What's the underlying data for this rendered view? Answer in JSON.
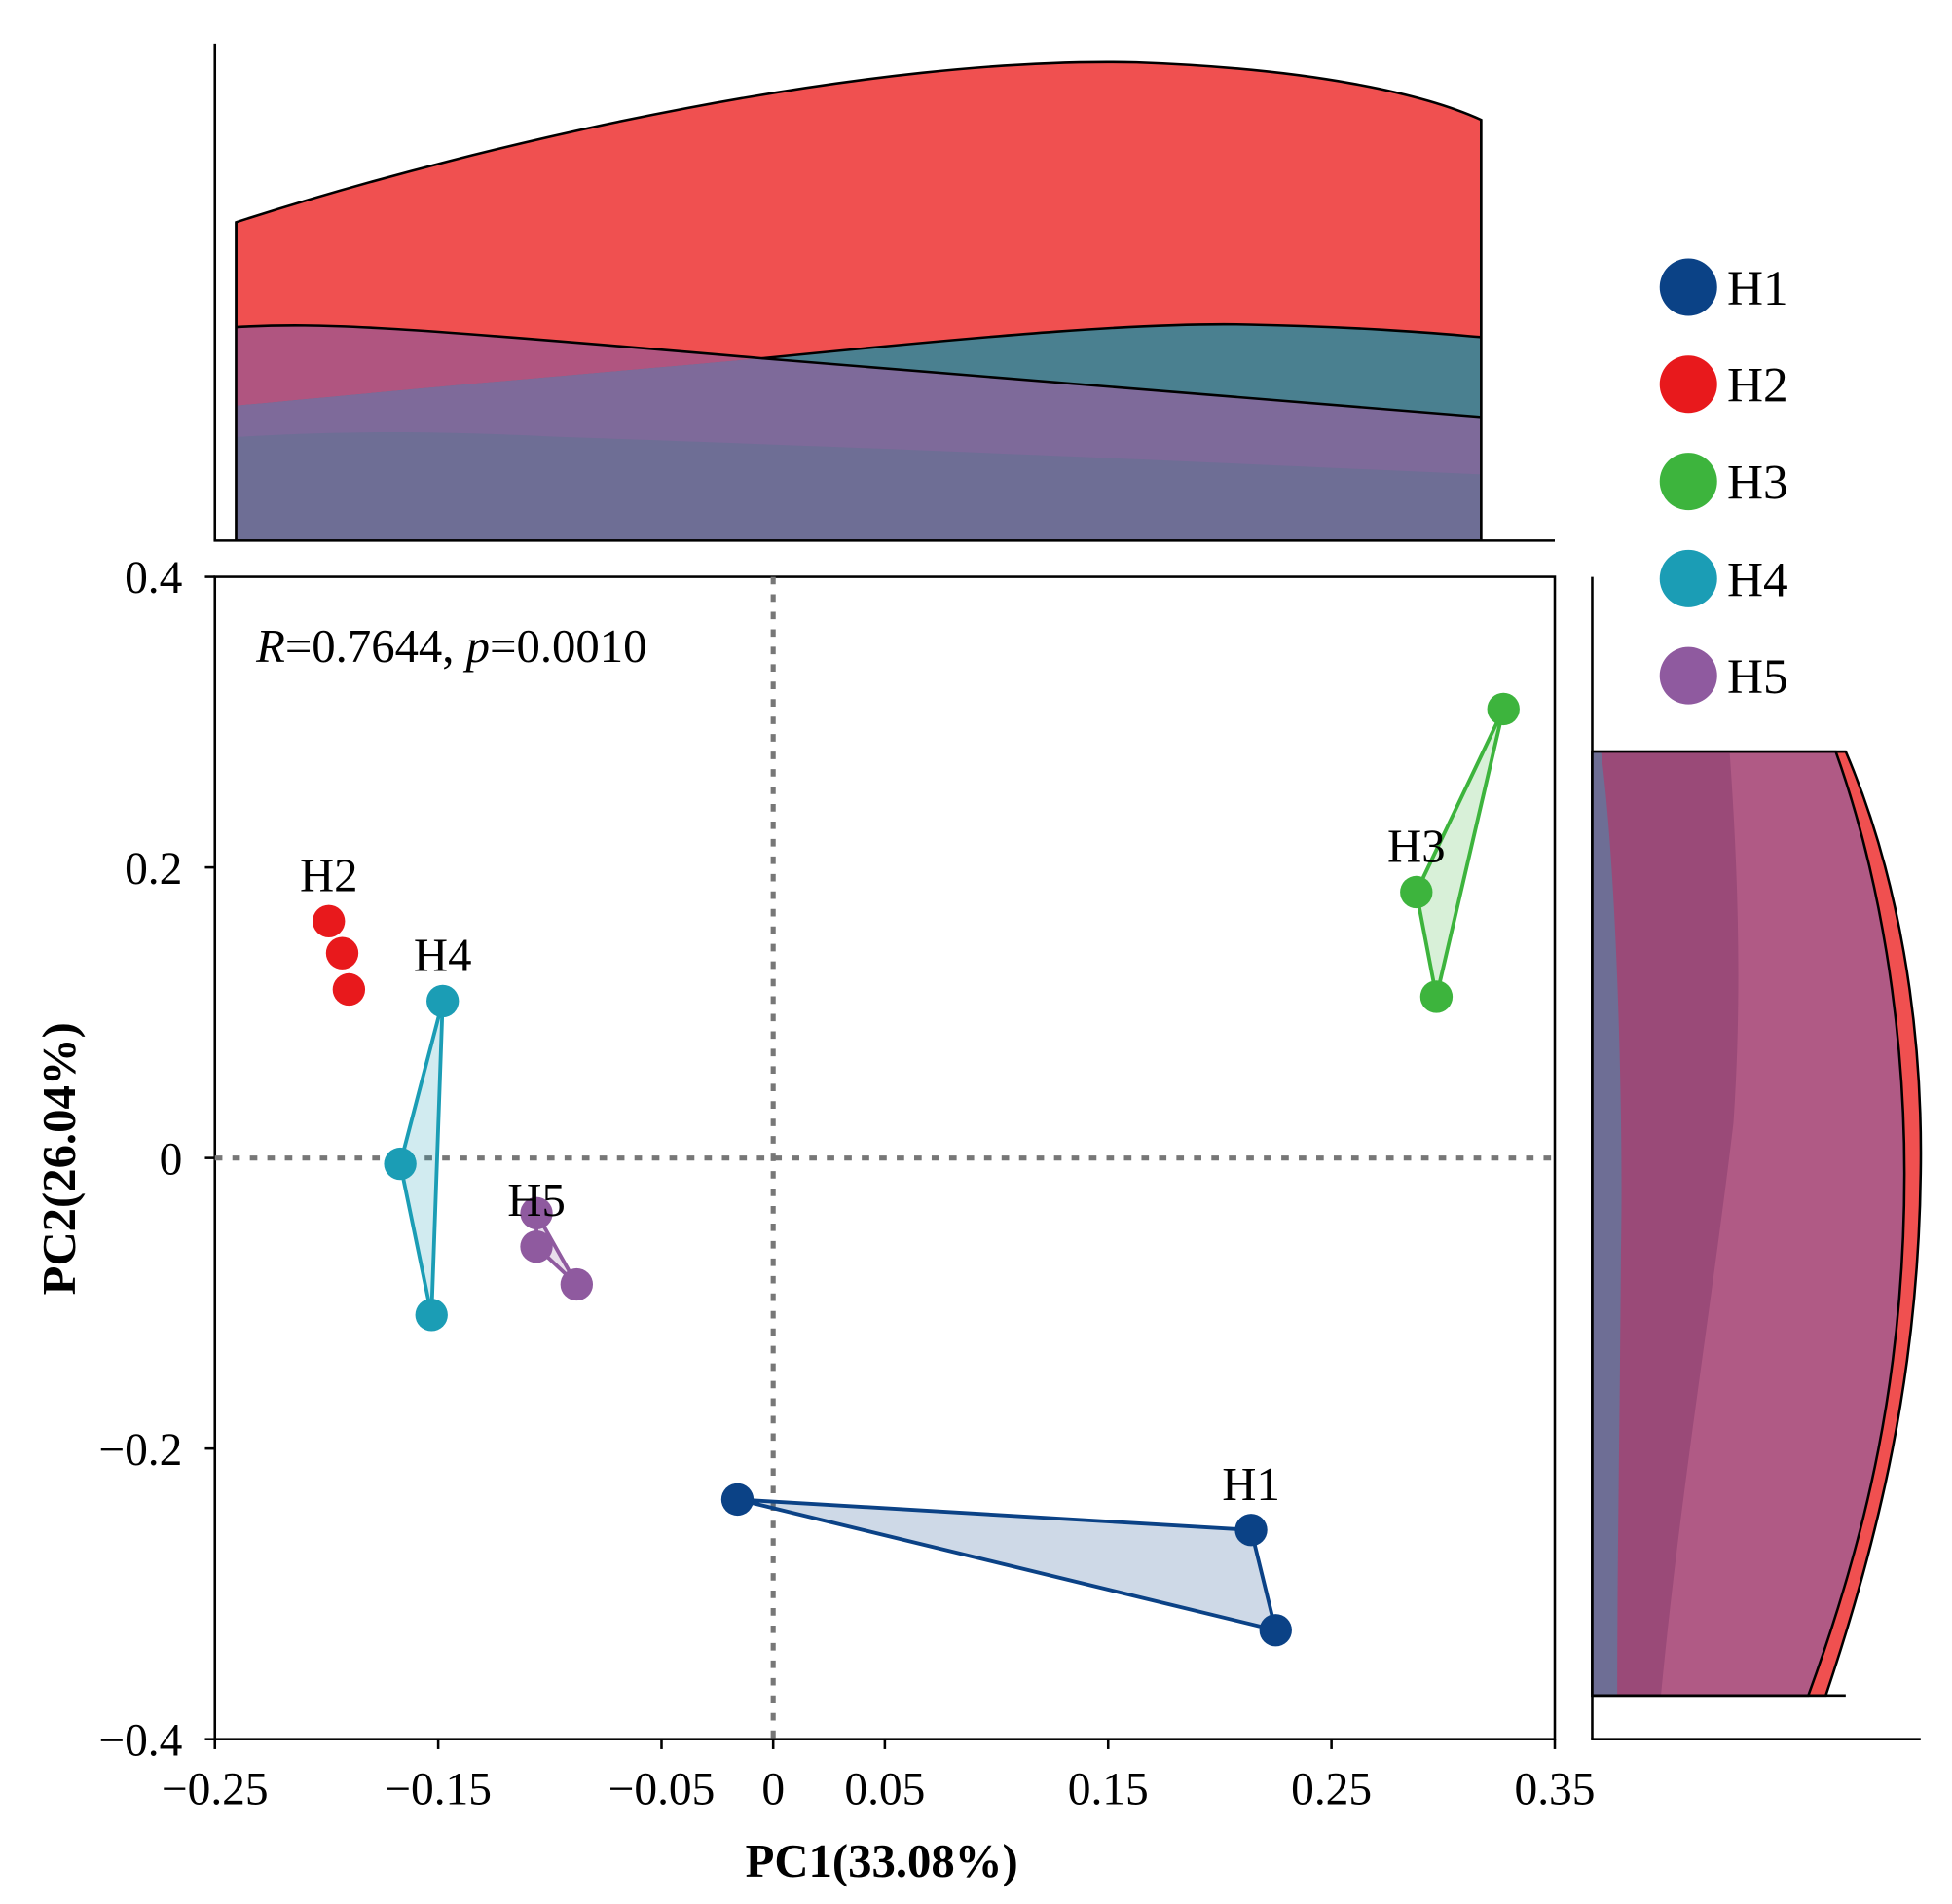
{
  "chart_data": {
    "type": "scatter",
    "title": "",
    "xlabel": "PC1(33.08%)",
    "ylabel": "PC2(26.04%)",
    "xlim": [
      -0.25,
      0.35
    ],
    "ylim": [
      -0.4,
      0.4
    ],
    "xticks": [
      -0.25,
      -0.15,
      -0.05,
      0,
      0.05,
      0.15,
      0.25,
      0.35
    ],
    "xtick_labels": [
      "−0.25",
      "−0.15",
      "−0.05",
      "0",
      "0.05",
      "0.15",
      "0.25",
      "0.35"
    ],
    "yticks": [
      0.4,
      0.2,
      0,
      -0.2,
      -0.4
    ],
    "ytick_labels": [
      "0.4",
      "0.2",
      "0",
      "−0.2",
      "−0.4"
    ],
    "grid": false,
    "reference_lines": {
      "x": 0,
      "y": 0,
      "style": "dotted"
    },
    "annotation": {
      "r_symbol": "R",
      "r_text": "=0.7644, ",
      "p_symbol": "p",
      "p_text": "=0.0010"
    },
    "legend_position": "top-right",
    "marginal_plots": [
      "top: density along PC1",
      "right: density along PC2"
    ],
    "series": [
      {
        "name": "H1",
        "color": "#0B4286",
        "x": [
          -0.016,
          0.214,
          0.225
        ],
        "y": [
          -0.235,
          -0.256,
          -0.325
        ]
      },
      {
        "name": "H2",
        "color": "#E8191C",
        "x": [
          -0.199,
          -0.193,
          -0.19
        ],
        "y": [
          0.163,
          0.141,
          0.116
        ]
      },
      {
        "name": "H3",
        "color": "#3DB43D",
        "x": [
          0.327,
          0.288,
          0.297
        ],
        "y": [
          0.309,
          0.183,
          0.111
        ]
      },
      {
        "name": "H4",
        "color": "#1B9DB5",
        "x": [
          -0.148,
          -0.167,
          -0.153
        ],
        "y": [
          0.108,
          -0.004,
          -0.108
        ]
      },
      {
        "name": "H5",
        "color": "#8F5A9F",
        "x": [
          -0.106,
          -0.106,
          -0.088
        ],
        "y": [
          -0.038,
          -0.061,
          -0.087
        ]
      }
    ]
  }
}
